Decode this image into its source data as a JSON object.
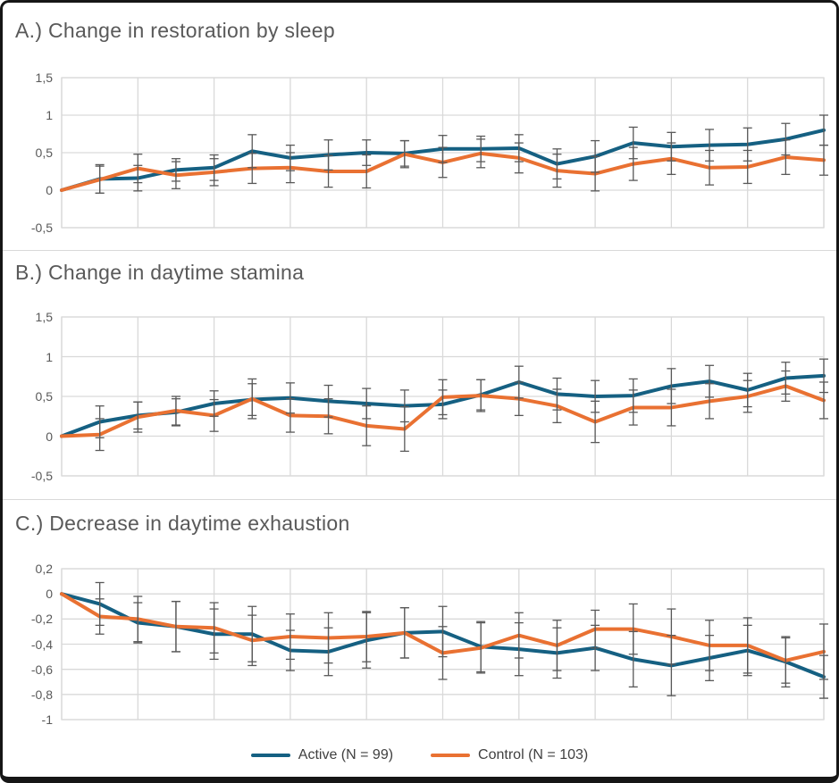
{
  "colors": {
    "active": "#156082",
    "control": "#E97132",
    "grid": "#d9d9d9",
    "error_bar": "#595959",
    "title_text": "#595959",
    "tick_text": "#595959",
    "legend_text": "#404040",
    "frame_border": "#161616"
  },
  "legend": {
    "items": [
      {
        "label": "Active (N = 99)",
        "color": "#156082"
      },
      {
        "label": "Control (N = 103)",
        "color": "#E97132"
      }
    ]
  },
  "chart_data": [
    {
      "type": "line",
      "title": "A.) Change in restoration by sleep",
      "x_index": [
        0,
        1,
        2,
        3,
        4,
        5,
        6,
        7,
        8,
        9,
        10,
        11,
        12,
        13,
        14,
        15,
        16,
        17,
        18,
        19,
        20
      ],
      "xlabel": "",
      "ylabel": "",
      "ylim": [
        -0.5,
        1.5
      ],
      "grid": true,
      "error_bars": true,
      "legend_position": "shared-bottom",
      "yticks": [
        {
          "value": 1.5,
          "label": "1,5"
        },
        {
          "value": 1,
          "label": "1"
        },
        {
          "value": 0.5,
          "label": "0,5"
        },
        {
          "value": 0,
          "label": "0"
        },
        {
          "value": -0.5,
          "label": "-0,5"
        }
      ],
      "series": [
        {
          "name": "Active (N = 99)",
          "color": "#156082",
          "values": [
            0,
            0.15,
            0.16,
            0.27,
            0.3,
            0.52,
            0.43,
            0.47,
            0.5,
            0.49,
            0.55,
            0.55,
            0.56,
            0.35,
            0.45,
            0.63,
            0.58,
            0.6,
            0.61,
            0.68,
            0.8
          ],
          "errors": [
            0,
            0.19,
            0.17,
            0.15,
            0.17,
            0.22,
            0.17,
            0.2,
            0.17,
            0.17,
            0.18,
            0.17,
            0.18,
            0.2,
            0.21,
            0.21,
            0.19,
            0.21,
            0.22,
            0.21,
            0.2
          ]
        },
        {
          "name": "Control (N = 103)",
          "color": "#E97132",
          "values": [
            0,
            0.14,
            0.29,
            0.2,
            0.24,
            0.29,
            0.3,
            0.25,
            0.25,
            0.48,
            0.37,
            0.49,
            0.43,
            0.26,
            0.22,
            0.35,
            0.42,
            0.3,
            0.31,
            0.44,
            0.4
          ],
          "errors": [
            0,
            0.18,
            0.19,
            0.18,
            0.18,
            0.2,
            0.2,
            0.21,
            0.22,
            0.18,
            0.2,
            0.19,
            0.2,
            0.22,
            0.23,
            0.22,
            0.21,
            0.23,
            0.22,
            0.23,
            0.2
          ]
        }
      ]
    },
    {
      "type": "line",
      "title": "B.) Change in daytime stamina",
      "x_index": [
        0,
        1,
        2,
        3,
        4,
        5,
        6,
        7,
        8,
        9,
        10,
        11,
        12,
        13,
        14,
        15,
        16,
        17,
        18,
        19,
        20
      ],
      "xlabel": "",
      "ylabel": "",
      "ylim": [
        -0.5,
        1.5
      ],
      "grid": true,
      "error_bars": true,
      "legend_position": "shared-bottom",
      "yticks": [
        {
          "value": 1.5,
          "label": "1,5"
        },
        {
          "value": 1,
          "label": "1"
        },
        {
          "value": 0.5,
          "label": "0,5"
        },
        {
          "value": 0,
          "label": "0"
        },
        {
          "value": -0.5,
          "label": "-0,5"
        }
      ],
      "series": [
        {
          "name": "Active (N = 99)",
          "color": "#156082",
          "values": [
            0,
            0.18,
            0.26,
            0.3,
            0.41,
            0.46,
            0.48,
            0.44,
            0.41,
            0.38,
            0.4,
            0.52,
            0.68,
            0.53,
            0.5,
            0.51,
            0.63,
            0.69,
            0.58,
            0.73,
            0.76
          ],
          "errors": [
            0,
            0.2,
            0.17,
            0.17,
            0.16,
            0.2,
            0.19,
            0.2,
            0.19,
            0.2,
            0.18,
            0.19,
            0.2,
            0.2,
            0.2,
            0.21,
            0.22,
            0.2,
            0.21,
            0.2,
            0.21
          ]
        },
        {
          "name": "Control (N = 103)",
          "color": "#E97132",
          "values": [
            0,
            0.02,
            0.24,
            0.32,
            0.26,
            0.47,
            0.26,
            0.25,
            0.13,
            0.09,
            0.49,
            0.51,
            0.47,
            0.38,
            0.18,
            0.36,
            0.36,
            0.44,
            0.5,
            0.63,
            0.45
          ],
          "errors": [
            0,
            0.2,
            0.19,
            0.18,
            0.2,
            0.25,
            0.21,
            0.22,
            0.25,
            0.28,
            0.22,
            0.2,
            0.21,
            0.21,
            0.26,
            0.22,
            0.23,
            0.22,
            0.2,
            0.19,
            0.23
          ]
        }
      ]
    },
    {
      "type": "line",
      "title": "C.) Decrease in daytime exhaustion",
      "x_index": [
        0,
        1,
        2,
        3,
        4,
        5,
        6,
        7,
        8,
        9,
        10,
        11,
        12,
        13,
        14,
        15,
        16,
        17,
        18,
        19,
        20
      ],
      "xlabel": "",
      "ylabel": "",
      "ylim": [
        -1,
        0.2
      ],
      "grid": true,
      "error_bars": true,
      "legend_position": "shared-bottom",
      "yticks": [
        {
          "value": 0.2,
          "label": "0,2"
        },
        {
          "value": 0,
          "label": "0"
        },
        {
          "value": -0.2,
          "label": "-0,2"
        },
        {
          "value": -0.4,
          "label": "-0,4"
        },
        {
          "value": -0.6,
          "label": "-0,6"
        },
        {
          "value": -0.8,
          "label": "-0,8"
        },
        {
          "value": -1,
          "label": "-1"
        }
      ],
      "series": [
        {
          "name": "Active (N = 99)",
          "color": "#156082",
          "values": [
            0,
            -0.08,
            -0.23,
            -0.26,
            -0.32,
            -0.32,
            -0.45,
            -0.46,
            -0.37,
            -0.31,
            -0.3,
            -0.42,
            -0.44,
            -0.47,
            -0.43,
            -0.52,
            -0.57,
            -0.51,
            -0.45,
            -0.54,
            -0.66
          ],
          "errors": [
            0,
            0.17,
            0.16,
            0.2,
            0.2,
            0.22,
            0.16,
            0.19,
            0.22,
            0.2,
            0.2,
            0.2,
            0.21,
            0.2,
            0.18,
            0.22,
            0.24,
            0.18,
            0.2,
            0.2,
            0.17
          ]
        },
        {
          "name": "Control (N = 103)",
          "color": "#E97132",
          "values": [
            0,
            -0.18,
            -0.2,
            -0.26,
            -0.27,
            -0.37,
            -0.34,
            -0.35,
            -0.34,
            -0.31,
            -0.47,
            -0.43,
            -0.33,
            -0.41,
            -0.28,
            -0.28,
            -0.34,
            -0.41,
            -0.41,
            -0.53,
            -0.46
          ],
          "errors": [
            0,
            0.14,
            0.18,
            0.2,
            0.2,
            0.2,
            0.18,
            0.2,
            0.2,
            0.2,
            0.21,
            0.2,
            0.18,
            0.2,
            0.15,
            0.2,
            0.22,
            0.2,
            0.22,
            0.18,
            0.22
          ]
        }
      ]
    }
  ]
}
